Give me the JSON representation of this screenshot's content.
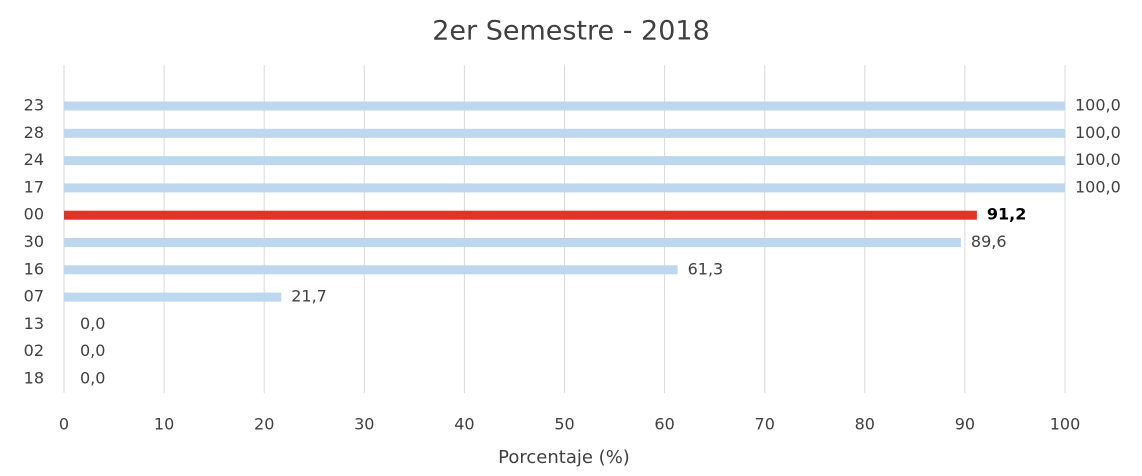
{
  "chart_data": {
    "type": "hbar",
    "title": "2er Semestre - 2018",
    "categories": [
      "23",
      "28",
      "24",
      "17",
      "00",
      "30",
      "16",
      "07",
      "13",
      "02",
      "18"
    ],
    "values": [
      100,
      100,
      100,
      100,
      91.2,
      89.6,
      61.3,
      21.7,
      0,
      0,
      0
    ],
    "value_labels": [
      "100,0",
      "100,0",
      "100,0",
      "100,0",
      "91,2",
      "89,6",
      "61,3",
      "21,7",
      "0,0",
      "0,0",
      "0,0"
    ],
    "colors": [
      "#bdd7ee",
      "#bdd7ee",
      "#bdd7ee",
      "#bdd7ee",
      "#e8302a",
      "#bdd7ee",
      "#bdd7ee",
      "#bdd7ee",
      "#bdd7ee",
      "#bdd7ee",
      "#bdd7ee"
    ],
    "bold_labels": [
      false,
      false,
      false,
      false,
      true,
      false,
      false,
      false,
      false,
      false,
      false
    ],
    "xlabel": "Porcentaje (%)",
    "xlim": [
      0,
      100
    ],
    "xticks": [
      0,
      10,
      20,
      30,
      40,
      50,
      60,
      70,
      80,
      90,
      100
    ],
    "grid": true
  }
}
